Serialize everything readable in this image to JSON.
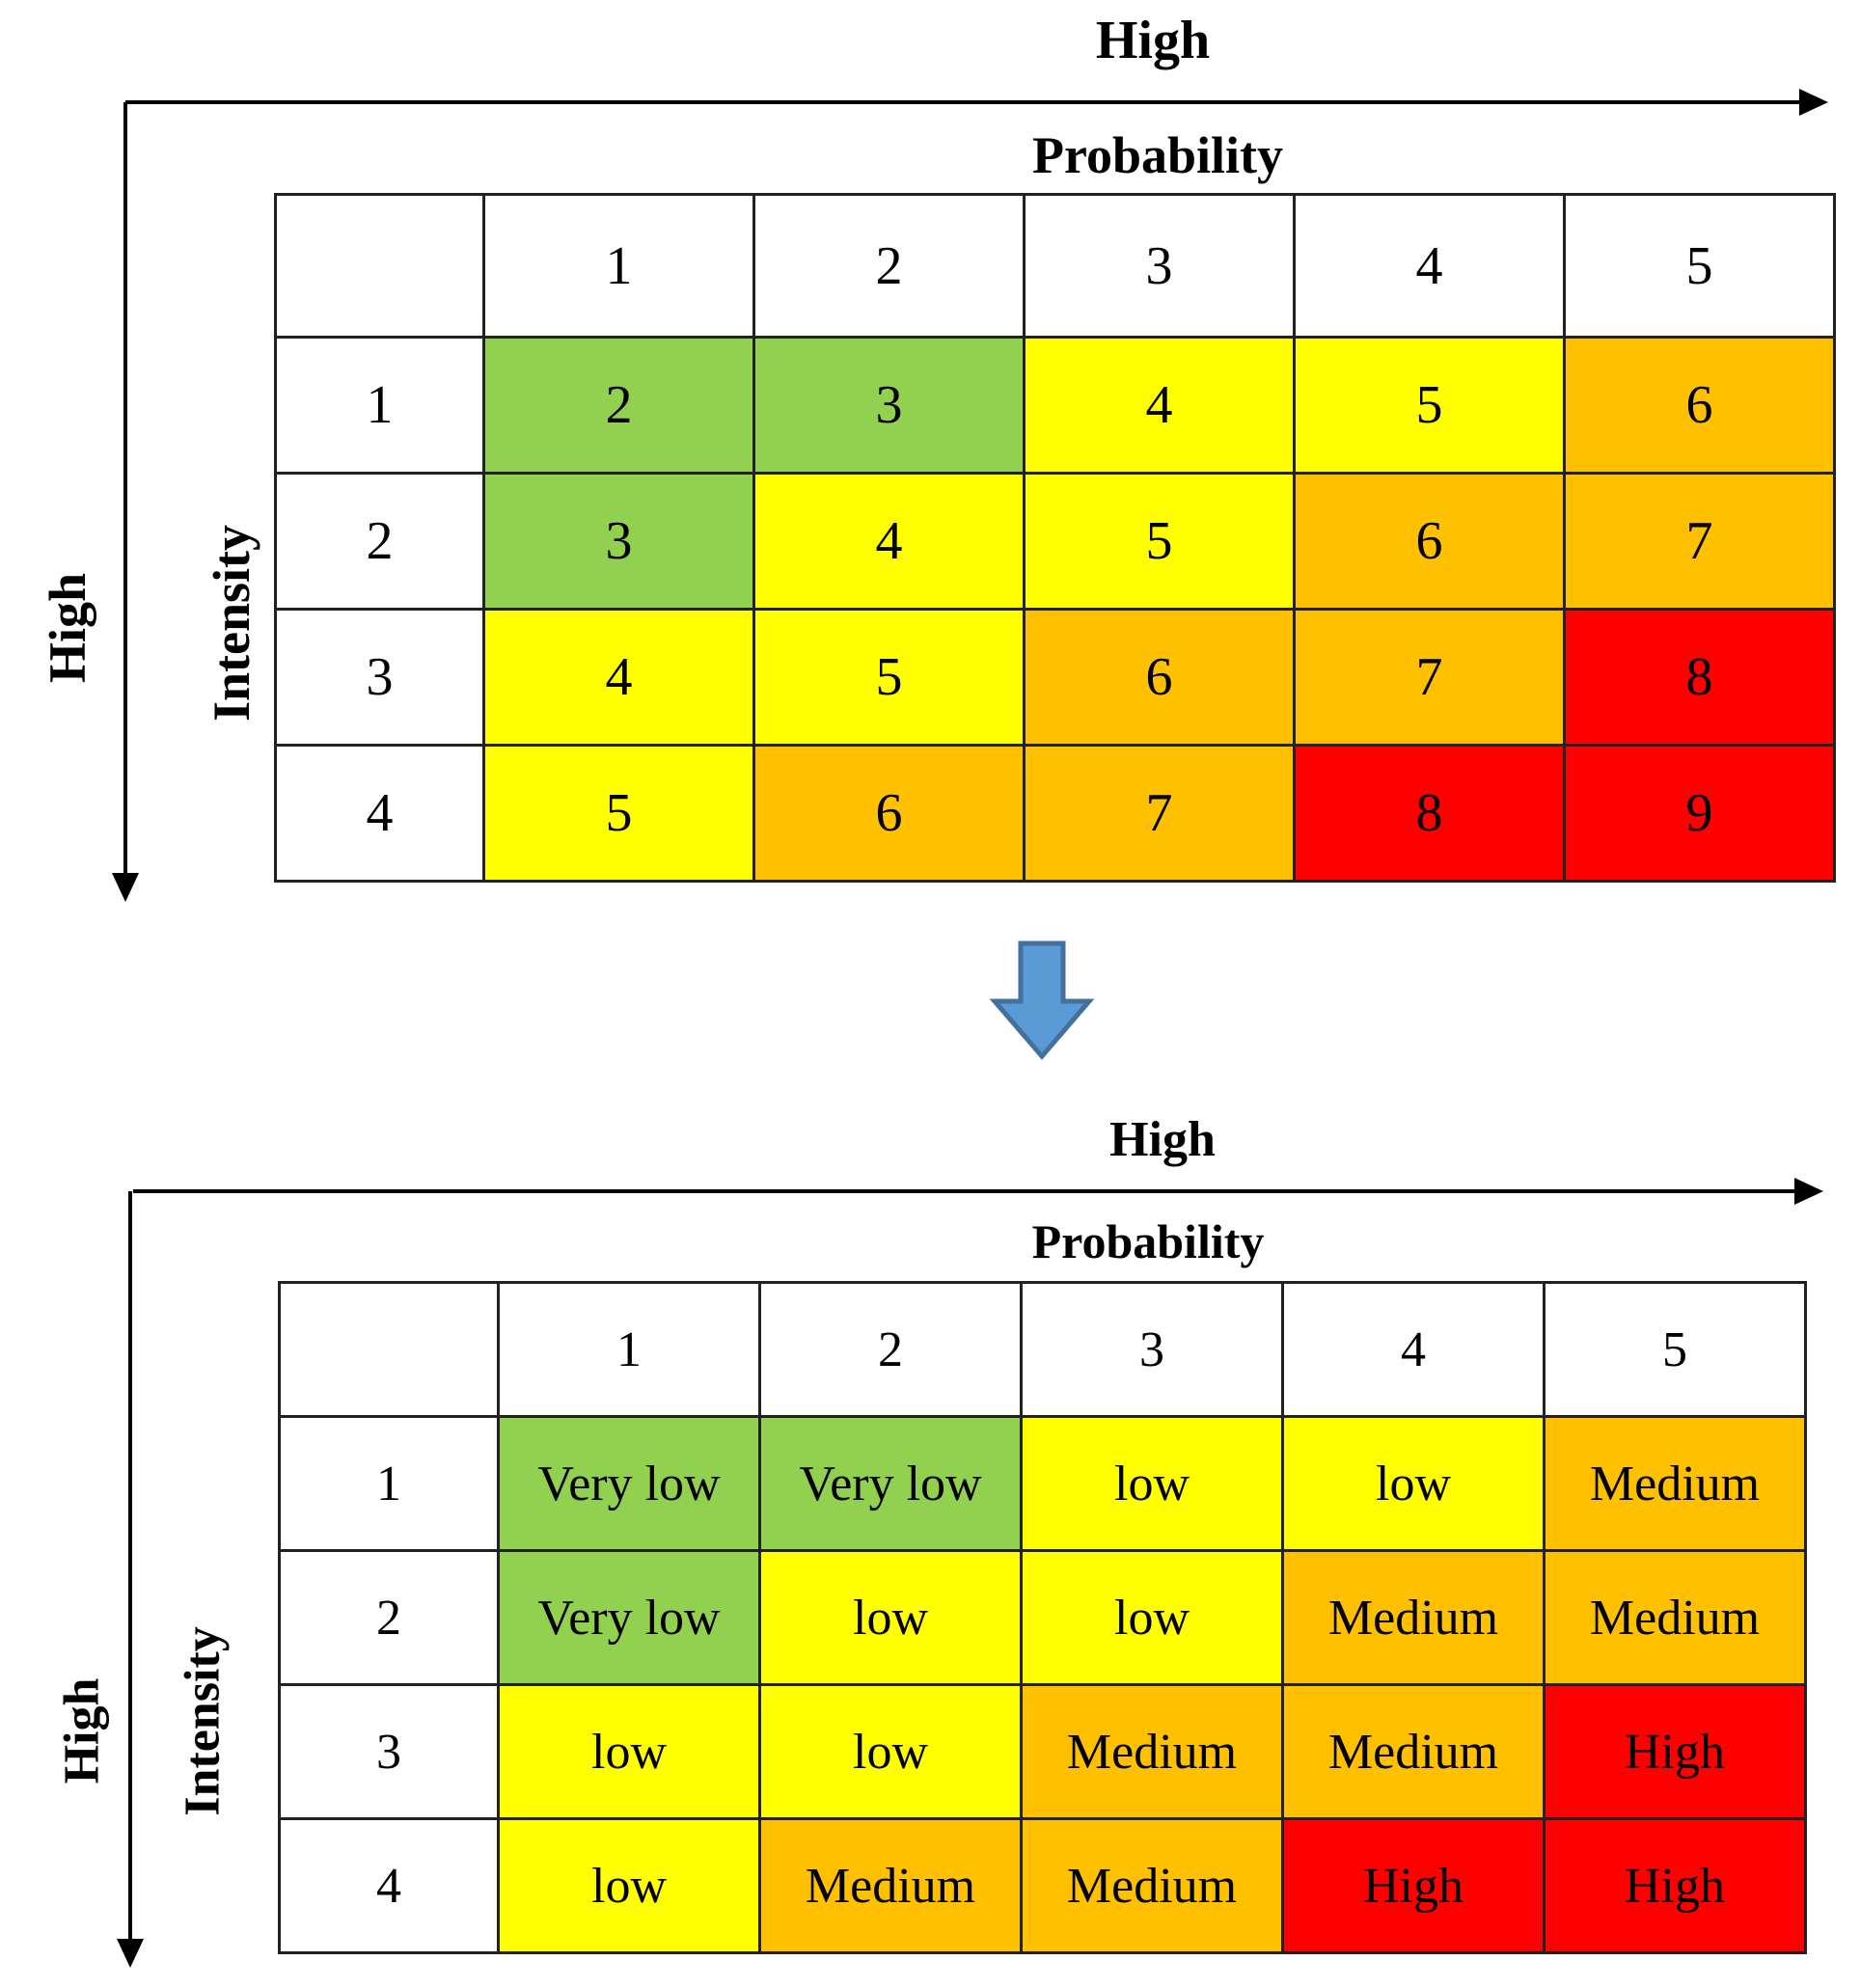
{
  "top_matrix": {
    "x_axis_end_label": "High",
    "x_axis_title": "Probability",
    "y_axis_end_label": "High",
    "y_axis_title": "Intensity",
    "column_headers": [
      "1",
      "2",
      "3",
      "4",
      "5"
    ],
    "rows": [
      {
        "header": "1",
        "cells": [
          "2",
          "3",
          "4",
          "5",
          "6"
        ],
        "colors": [
          "green",
          "green",
          "yellow",
          "yellow",
          "orange"
        ]
      },
      {
        "header": "2",
        "cells": [
          "3",
          "4",
          "5",
          "6",
          "7"
        ],
        "colors": [
          "green",
          "yellow",
          "yellow",
          "orange",
          "orange"
        ]
      },
      {
        "header": "3",
        "cells": [
          "4",
          "5",
          "6",
          "7",
          "8"
        ],
        "colors": [
          "yellow",
          "yellow",
          "orange",
          "orange",
          "red"
        ]
      },
      {
        "header": "4",
        "cells": [
          "5",
          "6",
          "7",
          "8",
          "9"
        ],
        "colors": [
          "yellow",
          "orange",
          "orange",
          "red",
          "red"
        ]
      }
    ]
  },
  "bottom_matrix": {
    "x_axis_end_label": "High",
    "x_axis_title": "Probability",
    "y_axis_end_label": "High",
    "y_axis_title": "Intensity",
    "column_headers": [
      "1",
      "2",
      "3",
      "4",
      "5"
    ],
    "rows": [
      {
        "header": "1",
        "cells": [
          "Very low",
          "Very low",
          "low",
          "low",
          "Medium"
        ],
        "colors": [
          "green",
          "green",
          "yellow",
          "yellow",
          "orange"
        ]
      },
      {
        "header": "2",
        "cells": [
          "Very low",
          "low",
          "low",
          "Medium",
          "Medium"
        ],
        "colors": [
          "green",
          "yellow",
          "yellow",
          "orange",
          "orange"
        ]
      },
      {
        "header": "3",
        "cells": [
          "low",
          "low",
          "Medium",
          "Medium",
          "High"
        ],
        "colors": [
          "yellow",
          "yellow",
          "orange",
          "orange",
          "red"
        ]
      },
      {
        "header": "4",
        "cells": [
          "low",
          "Medium",
          "Medium",
          "High",
          "High"
        ],
        "colors": [
          "yellow",
          "orange",
          "orange",
          "red",
          "red"
        ]
      }
    ]
  },
  "colors": {
    "green": "#92d050",
    "yellow": "#ffff00",
    "orange": "#ffc000",
    "red": "#ff0000",
    "arrow_fill": "#5b9bd5",
    "arrow_stroke": "#41719c"
  },
  "transition_icon": "down-arrow-icon"
}
